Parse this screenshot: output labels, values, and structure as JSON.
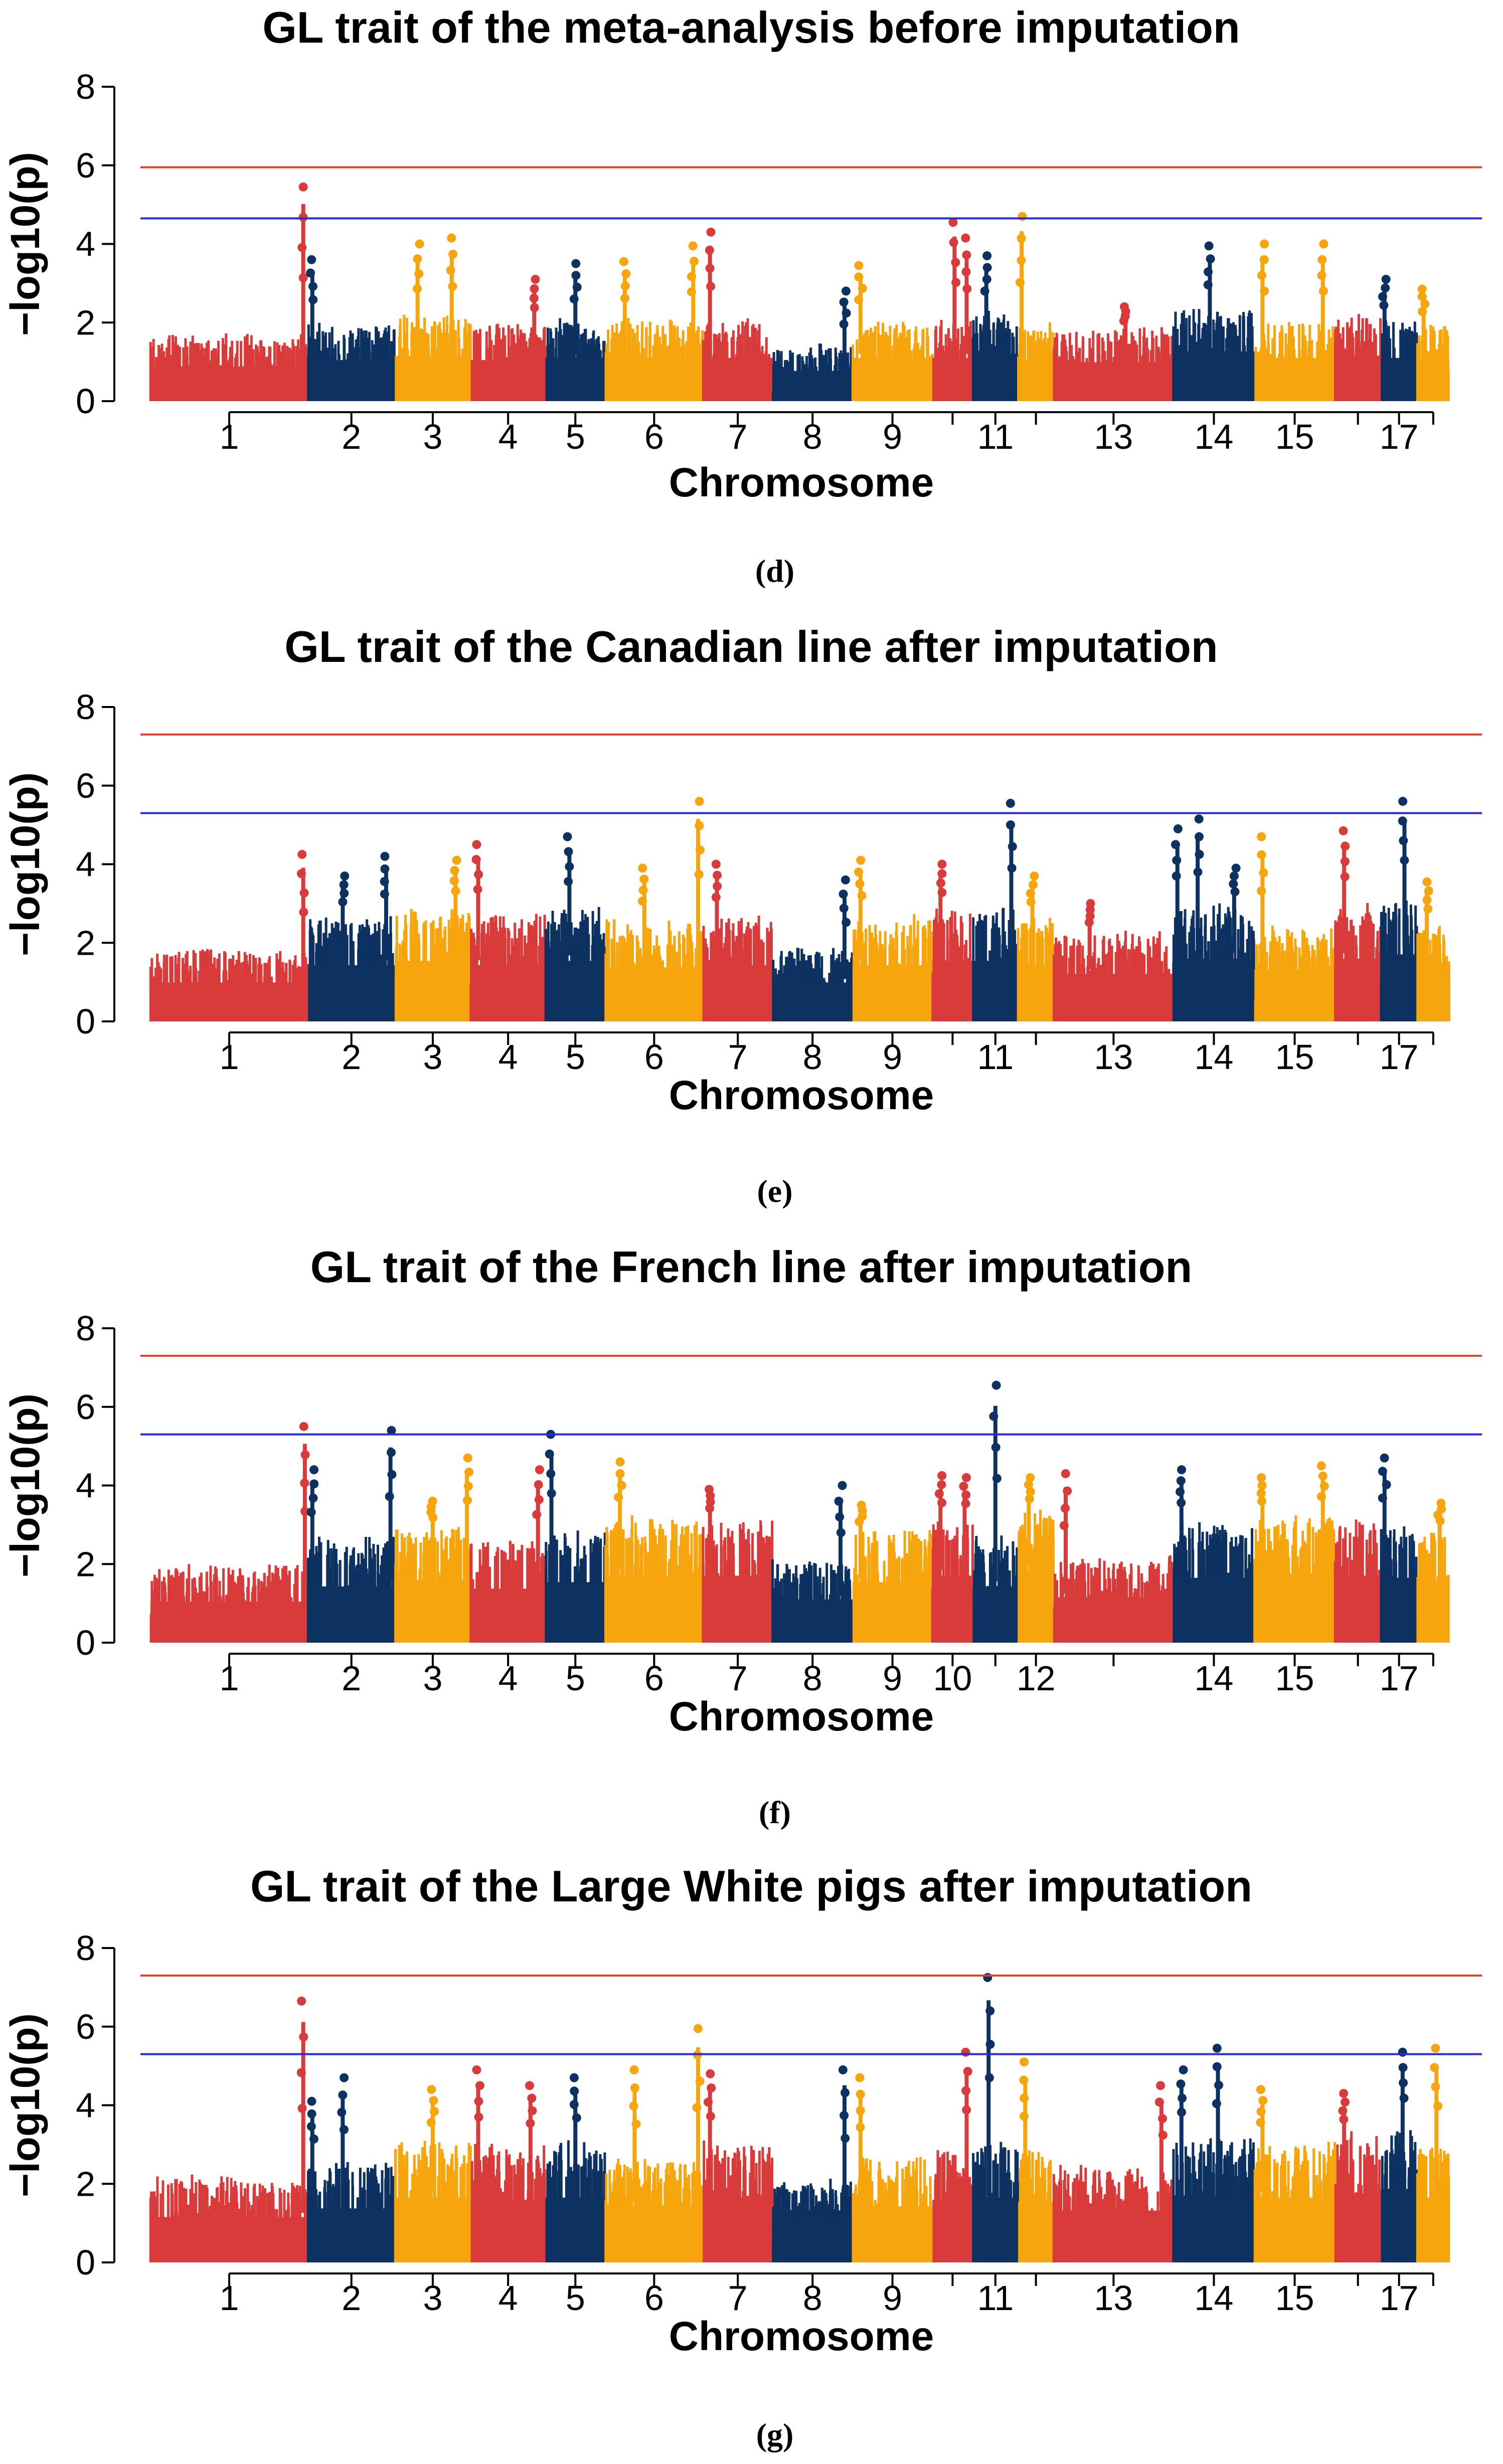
{
  "colors": {
    "red": "#d93a3a",
    "navy": "#0d3161",
    "orange": "#f7a50c",
    "threshold_genome": "#e0412a",
    "threshold_suggestive": "#2a2ad6"
  },
  "chromosomes": [
    {
      "chr": 1,
      "size": 274,
      "color": "red"
    },
    {
      "chr": 2,
      "size": 151,
      "color": "navy"
    },
    {
      "chr": 3,
      "size": 132,
      "color": "orange"
    },
    {
      "chr": 4,
      "size": 130,
      "color": "red"
    },
    {
      "chr": 5,
      "size": 104,
      "color": "navy"
    },
    {
      "chr": 6,
      "size": 170,
      "color": "orange"
    },
    {
      "chr": 7,
      "size": 121,
      "color": "red"
    },
    {
      "chr": 8,
      "size": 139,
      "color": "navy"
    },
    {
      "chr": 9,
      "size": 139,
      "color": "orange"
    },
    {
      "chr": 10,
      "size": 70,
      "color": "red"
    },
    {
      "chr": 11,
      "size": 79,
      "color": "navy"
    },
    {
      "chr": 12,
      "size": 62,
      "color": "orange"
    },
    {
      "chr": 13,
      "size": 208,
      "color": "red"
    },
    {
      "chr": 14,
      "size": 141,
      "color": "navy"
    },
    {
      "chr": 15,
      "size": 140,
      "color": "orange"
    },
    {
      "chr": 16,
      "size": 80,
      "color": "red"
    },
    {
      "chr": 17,
      "size": 63,
      "color": "navy"
    },
    {
      "chr": 18,
      "size": 56,
      "color": "orange"
    }
  ],
  "chart_data": [
    {
      "type": "scatter",
      "subtype": "manhattan",
      "title": "GL trait of the meta-analysis before imputation",
      "xlabel": "Chromosome",
      "ylabel": "−log10(p)",
      "ylim": [
        0,
        8
      ],
      "yticks": [
        "0",
        "2",
        "4",
        "6",
        "8"
      ],
      "xtick_labels": [
        {
          "chr": 1,
          "label": "1"
        },
        {
          "chr": 2,
          "label": "2"
        },
        {
          "chr": 3,
          "label": "3"
        },
        {
          "chr": 4,
          "label": "4"
        },
        {
          "chr": 5,
          "label": "5"
        },
        {
          "chr": 6,
          "label": "6"
        },
        {
          "chr": 7,
          "label": "7"
        },
        {
          "chr": 8,
          "label": "8"
        },
        {
          "chr": 9,
          "label": "9"
        },
        {
          "chr": 11,
          "label": "11"
        },
        {
          "chr": 13,
          "label": "13"
        },
        {
          "chr": 14,
          "label": "14"
        },
        {
          "chr": 15,
          "label": "15"
        },
        {
          "chr": 17,
          "label": "17"
        }
      ],
      "thresholds": {
        "genome_wide": 5.95,
        "suggestive": 4.65
      },
      "baseline_by_chr": [
        1.6,
        1.9,
        2.1,
        1.9,
        2.0,
        2.0,
        2.0,
        1.4,
        2.0,
        2.0,
        2.2,
        1.9,
        1.8,
        2.3,
        2.0,
        2.1,
        2.0,
        1.9
      ],
      "peaks": [
        {
          "chr": 1,
          "pos": 0.97,
          "value": 5.45
        },
        {
          "chr": 2,
          "pos": 0.05,
          "value": 3.6
        },
        {
          "chr": 3,
          "pos": 0.3,
          "value": 4.0
        },
        {
          "chr": 3,
          "pos": 0.75,
          "value": 4.15
        },
        {
          "chr": 4,
          "pos": 0.85,
          "value": 3.1
        },
        {
          "chr": 5,
          "pos": 0.5,
          "value": 3.5
        },
        {
          "chr": 6,
          "pos": 0.2,
          "value": 3.55
        },
        {
          "chr": 6,
          "pos": 0.9,
          "value": 3.95
        },
        {
          "chr": 7,
          "pos": 0.1,
          "value": 4.3
        },
        {
          "chr": 8,
          "pos": 0.9,
          "value": 2.8
        },
        {
          "chr": 9,
          "pos": 0.1,
          "value": 3.45
        },
        {
          "chr": 10,
          "pos": 0.55,
          "value": 4.55
        },
        {
          "chr": 10,
          "pos": 0.85,
          "value": 4.15
        },
        {
          "chr": 11,
          "pos": 0.3,
          "value": 3.7
        },
        {
          "chr": 12,
          "pos": 0.1,
          "value": 4.7
        },
        {
          "chr": 13,
          "pos": 0.6,
          "value": 2.4
        },
        {
          "chr": 14,
          "pos": 0.45,
          "value": 3.95
        },
        {
          "chr": 15,
          "pos": 0.1,
          "value": 4.0
        },
        {
          "chr": 15,
          "pos": 0.85,
          "value": 4.0
        },
        {
          "chr": 17,
          "pos": 0.1,
          "value": 3.1
        },
        {
          "chr": 18,
          "pos": 0.2,
          "value": 2.85
        }
      ]
    },
    {
      "type": "scatter",
      "subtype": "manhattan",
      "title": "GL trait of the Canadian line after imputation",
      "xlabel": "Chromosome",
      "ylabel": "−log10(p)",
      "ylim": [
        0,
        8
      ],
      "yticks": [
        "0",
        "2",
        "4",
        "6",
        "8"
      ],
      "xtick_labels": [
        {
          "chr": 1,
          "label": "1"
        },
        {
          "chr": 2,
          "label": "2"
        },
        {
          "chr": 3,
          "label": "3"
        },
        {
          "chr": 4,
          "label": "4"
        },
        {
          "chr": 5,
          "label": "5"
        },
        {
          "chr": 6,
          "label": "6"
        },
        {
          "chr": 7,
          "label": "7"
        },
        {
          "chr": 8,
          "label": "8"
        },
        {
          "chr": 9,
          "label": "9"
        },
        {
          "chr": 11,
          "label": "11"
        },
        {
          "chr": 13,
          "label": "13"
        },
        {
          "chr": 14,
          "label": "14"
        },
        {
          "chr": 15,
          "label": "15"
        },
        {
          "chr": 17,
          "label": "17"
        }
      ],
      "thresholds": {
        "genome_wide": 7.3,
        "suggestive": 5.3
      },
      "baseline_by_chr": [
        1.8,
        2.6,
        2.8,
        2.6,
        2.8,
        2.5,
        2.6,
        1.8,
        2.6,
        2.8,
        2.8,
        2.6,
        2.2,
        2.9,
        2.4,
        2.9,
        3.1,
        2.4
      ],
      "peaks": [
        {
          "chr": 1,
          "pos": 0.97,
          "value": 4.25
        },
        {
          "chr": 2,
          "pos": 0.4,
          "value": 3.7
        },
        {
          "chr": 2,
          "pos": 0.9,
          "value": 4.2
        },
        {
          "chr": 3,
          "pos": 0.8,
          "value": 4.1
        },
        {
          "chr": 4,
          "pos": 0.1,
          "value": 4.5
        },
        {
          "chr": 5,
          "pos": 0.4,
          "value": 4.7
        },
        {
          "chr": 6,
          "pos": 0.4,
          "value": 3.9
        },
        {
          "chr": 6,
          "pos": 0.95,
          "value": 5.6
        },
        {
          "chr": 7,
          "pos": 0.2,
          "value": 4.0
        },
        {
          "chr": 8,
          "pos": 0.9,
          "value": 3.6
        },
        {
          "chr": 9,
          "pos": 0.1,
          "value": 4.1
        },
        {
          "chr": 10,
          "pos": 0.2,
          "value": 4.0
        },
        {
          "chr": 11,
          "pos": 0.85,
          "value": 5.55
        },
        {
          "chr": 12,
          "pos": 0.4,
          "value": 3.7
        },
        {
          "chr": 13,
          "pos": 0.3,
          "value": 3.0
        },
        {
          "chr": 14,
          "pos": 0.05,
          "value": 4.9
        },
        {
          "chr": 14,
          "pos": 0.3,
          "value": 5.15
        },
        {
          "chr": 14,
          "pos": 0.75,
          "value": 3.9
        },
        {
          "chr": 15,
          "pos": 0.1,
          "value": 4.7
        },
        {
          "chr": 16,
          "pos": 0.2,
          "value": 4.85
        },
        {
          "chr": 17,
          "pos": 0.65,
          "value": 5.6
        },
        {
          "chr": 18,
          "pos": 0.3,
          "value": 3.55
        }
      ]
    },
    {
      "type": "scatter",
      "subtype": "manhattan",
      "title": "GL trait of the French line after imputation",
      "xlabel": "Chromosome",
      "ylabel": "−log10(p)",
      "ylim": [
        0,
        8
      ],
      "yticks": [
        "0",
        "2",
        "4",
        "6",
        "8"
      ],
      "xtick_labels": [
        {
          "chr": 1,
          "label": "1"
        },
        {
          "chr": 2,
          "label": "2"
        },
        {
          "chr": 3,
          "label": "3"
        },
        {
          "chr": 4,
          "label": "4"
        },
        {
          "chr": 5,
          "label": "5"
        },
        {
          "chr": 6,
          "label": "6"
        },
        {
          "chr": 7,
          "label": "7"
        },
        {
          "chr": 8,
          "label": "8"
        },
        {
          "chr": 9,
          "label": "9"
        },
        {
          "chr": 10,
          "label": "10"
        },
        {
          "chr": 12,
          "label": "12"
        },
        {
          "chr": 14,
          "label": "14"
        },
        {
          "chr": 15,
          "label": "15"
        },
        {
          "chr": 17,
          "label": "17"
        }
      ],
      "thresholds": {
        "genome_wide": 7.3,
        "suggestive": 5.3
      },
      "baseline_by_chr": [
        1.9,
        2.6,
        2.9,
        2.5,
        2.8,
        3.1,
        3.1,
        2.0,
        2.8,
        3.1,
        2.6,
        3.3,
        2.1,
        3.0,
        3.2,
        3.1,
        3.0,
        2.8
      ],
      "peaks": [
        {
          "chr": 1,
          "pos": 0.98,
          "value": 5.5
        },
        {
          "chr": 2,
          "pos": 0.05,
          "value": 4.4
        },
        {
          "chr": 2,
          "pos": 0.95,
          "value": 5.4
        },
        {
          "chr": 3,
          "pos": 0.5,
          "value": 3.6
        },
        {
          "chr": 3,
          "pos": 0.95,
          "value": 4.7
        },
        {
          "chr": 4,
          "pos": 0.9,
          "value": 4.4
        },
        {
          "chr": 5,
          "pos": 0.1,
          "value": 5.3
        },
        {
          "chr": 6,
          "pos": 0.15,
          "value": 4.6
        },
        {
          "chr": 7,
          "pos": 0.1,
          "value": 3.9
        },
        {
          "chr": 8,
          "pos": 0.85,
          "value": 4.0
        },
        {
          "chr": 9,
          "pos": 0.1,
          "value": 3.5
        },
        {
          "chr": 10,
          "pos": 0.2,
          "value": 4.25
        },
        {
          "chr": 10,
          "pos": 0.8,
          "value": 4.2
        },
        {
          "chr": 11,
          "pos": 0.5,
          "value": 6.55
        },
        {
          "chr": 12,
          "pos": 0.3,
          "value": 4.2
        },
        {
          "chr": 13,
          "pos": 0.1,
          "value": 4.3
        },
        {
          "chr": 14,
          "pos": 0.1,
          "value": 4.4
        },
        {
          "chr": 15,
          "pos": 0.1,
          "value": 4.2
        },
        {
          "chr": 15,
          "pos": 0.85,
          "value": 4.5
        },
        {
          "chr": 17,
          "pos": 0.1,
          "value": 4.7
        },
        {
          "chr": 18,
          "pos": 0.7,
          "value": 3.55
        }
      ]
    },
    {
      "type": "scatter",
      "subtype": "manhattan",
      "title": "GL trait of the Large White pigs after imputation",
      "xlabel": "Chromosome",
      "ylabel": "−log10(p)",
      "ylim": [
        0,
        8
      ],
      "yticks": [
        "0",
        "2",
        "4",
        "6",
        "8"
      ],
      "xtick_labels": [
        {
          "chr": 1,
          "label": "1"
        },
        {
          "chr": 2,
          "label": "2"
        },
        {
          "chr": 3,
          "label": "3"
        },
        {
          "chr": 4,
          "label": "4"
        },
        {
          "chr": 5,
          "label": "5"
        },
        {
          "chr": 6,
          "label": "6"
        },
        {
          "chr": 7,
          "label": "7"
        },
        {
          "chr": 8,
          "label": "8"
        },
        {
          "chr": 9,
          "label": "9"
        },
        {
          "chr": 11,
          "label": "11"
        },
        {
          "chr": 13,
          "label": "13"
        },
        {
          "chr": 14,
          "label": "14"
        },
        {
          "chr": 15,
          "label": "15"
        },
        {
          "chr": 17,
          "label": "17"
        }
      ],
      "thresholds": {
        "genome_wide": 7.3,
        "suggestive": 5.3
      },
      "baseline_by_chr": [
        2.1,
        2.5,
        3.0,
        2.9,
        3.0,
        2.6,
        3.0,
        2.0,
        2.6,
        2.9,
        3.0,
        2.8,
        2.4,
        3.1,
        3.0,
        3.2,
        3.4,
        3.0
      ],
      "peaks": [
        {
          "chr": 1,
          "pos": 0.97,
          "value": 6.65
        },
        {
          "chr": 2,
          "pos": 0.05,
          "value": 4.1
        },
        {
          "chr": 2,
          "pos": 0.4,
          "value": 4.7
        },
        {
          "chr": 3,
          "pos": 0.5,
          "value": 4.4
        },
        {
          "chr": 4,
          "pos": 0.1,
          "value": 4.9
        },
        {
          "chr": 4,
          "pos": 0.8,
          "value": 4.5
        },
        {
          "chr": 5,
          "pos": 0.5,
          "value": 4.7
        },
        {
          "chr": 6,
          "pos": 0.3,
          "value": 4.9
        },
        {
          "chr": 6,
          "pos": 0.95,
          "value": 5.95
        },
        {
          "chr": 7,
          "pos": 0.1,
          "value": 4.8
        },
        {
          "chr": 8,
          "pos": 0.9,
          "value": 4.9
        },
        {
          "chr": 9,
          "pos": 0.1,
          "value": 4.7
        },
        {
          "chr": 10,
          "pos": 0.85,
          "value": 5.35
        },
        {
          "chr": 11,
          "pos": 0.35,
          "value": 7.25
        },
        {
          "chr": 12,
          "pos": 0.2,
          "value": 5.1
        },
        {
          "chr": 13,
          "pos": 0.9,
          "value": 4.5
        },
        {
          "chr": 14,
          "pos": 0.1,
          "value": 4.9
        },
        {
          "chr": 14,
          "pos": 0.55,
          "value": 5.45
        },
        {
          "chr": 15,
          "pos": 0.1,
          "value": 4.4
        },
        {
          "chr": 16,
          "pos": 0.2,
          "value": 4.3
        },
        {
          "chr": 17,
          "pos": 0.6,
          "value": 5.35
        },
        {
          "chr": 18,
          "pos": 0.6,
          "value": 5.45
        }
      ]
    }
  ],
  "captions": [
    "(d)",
    "(e)",
    "(f)",
    "(g)"
  ]
}
